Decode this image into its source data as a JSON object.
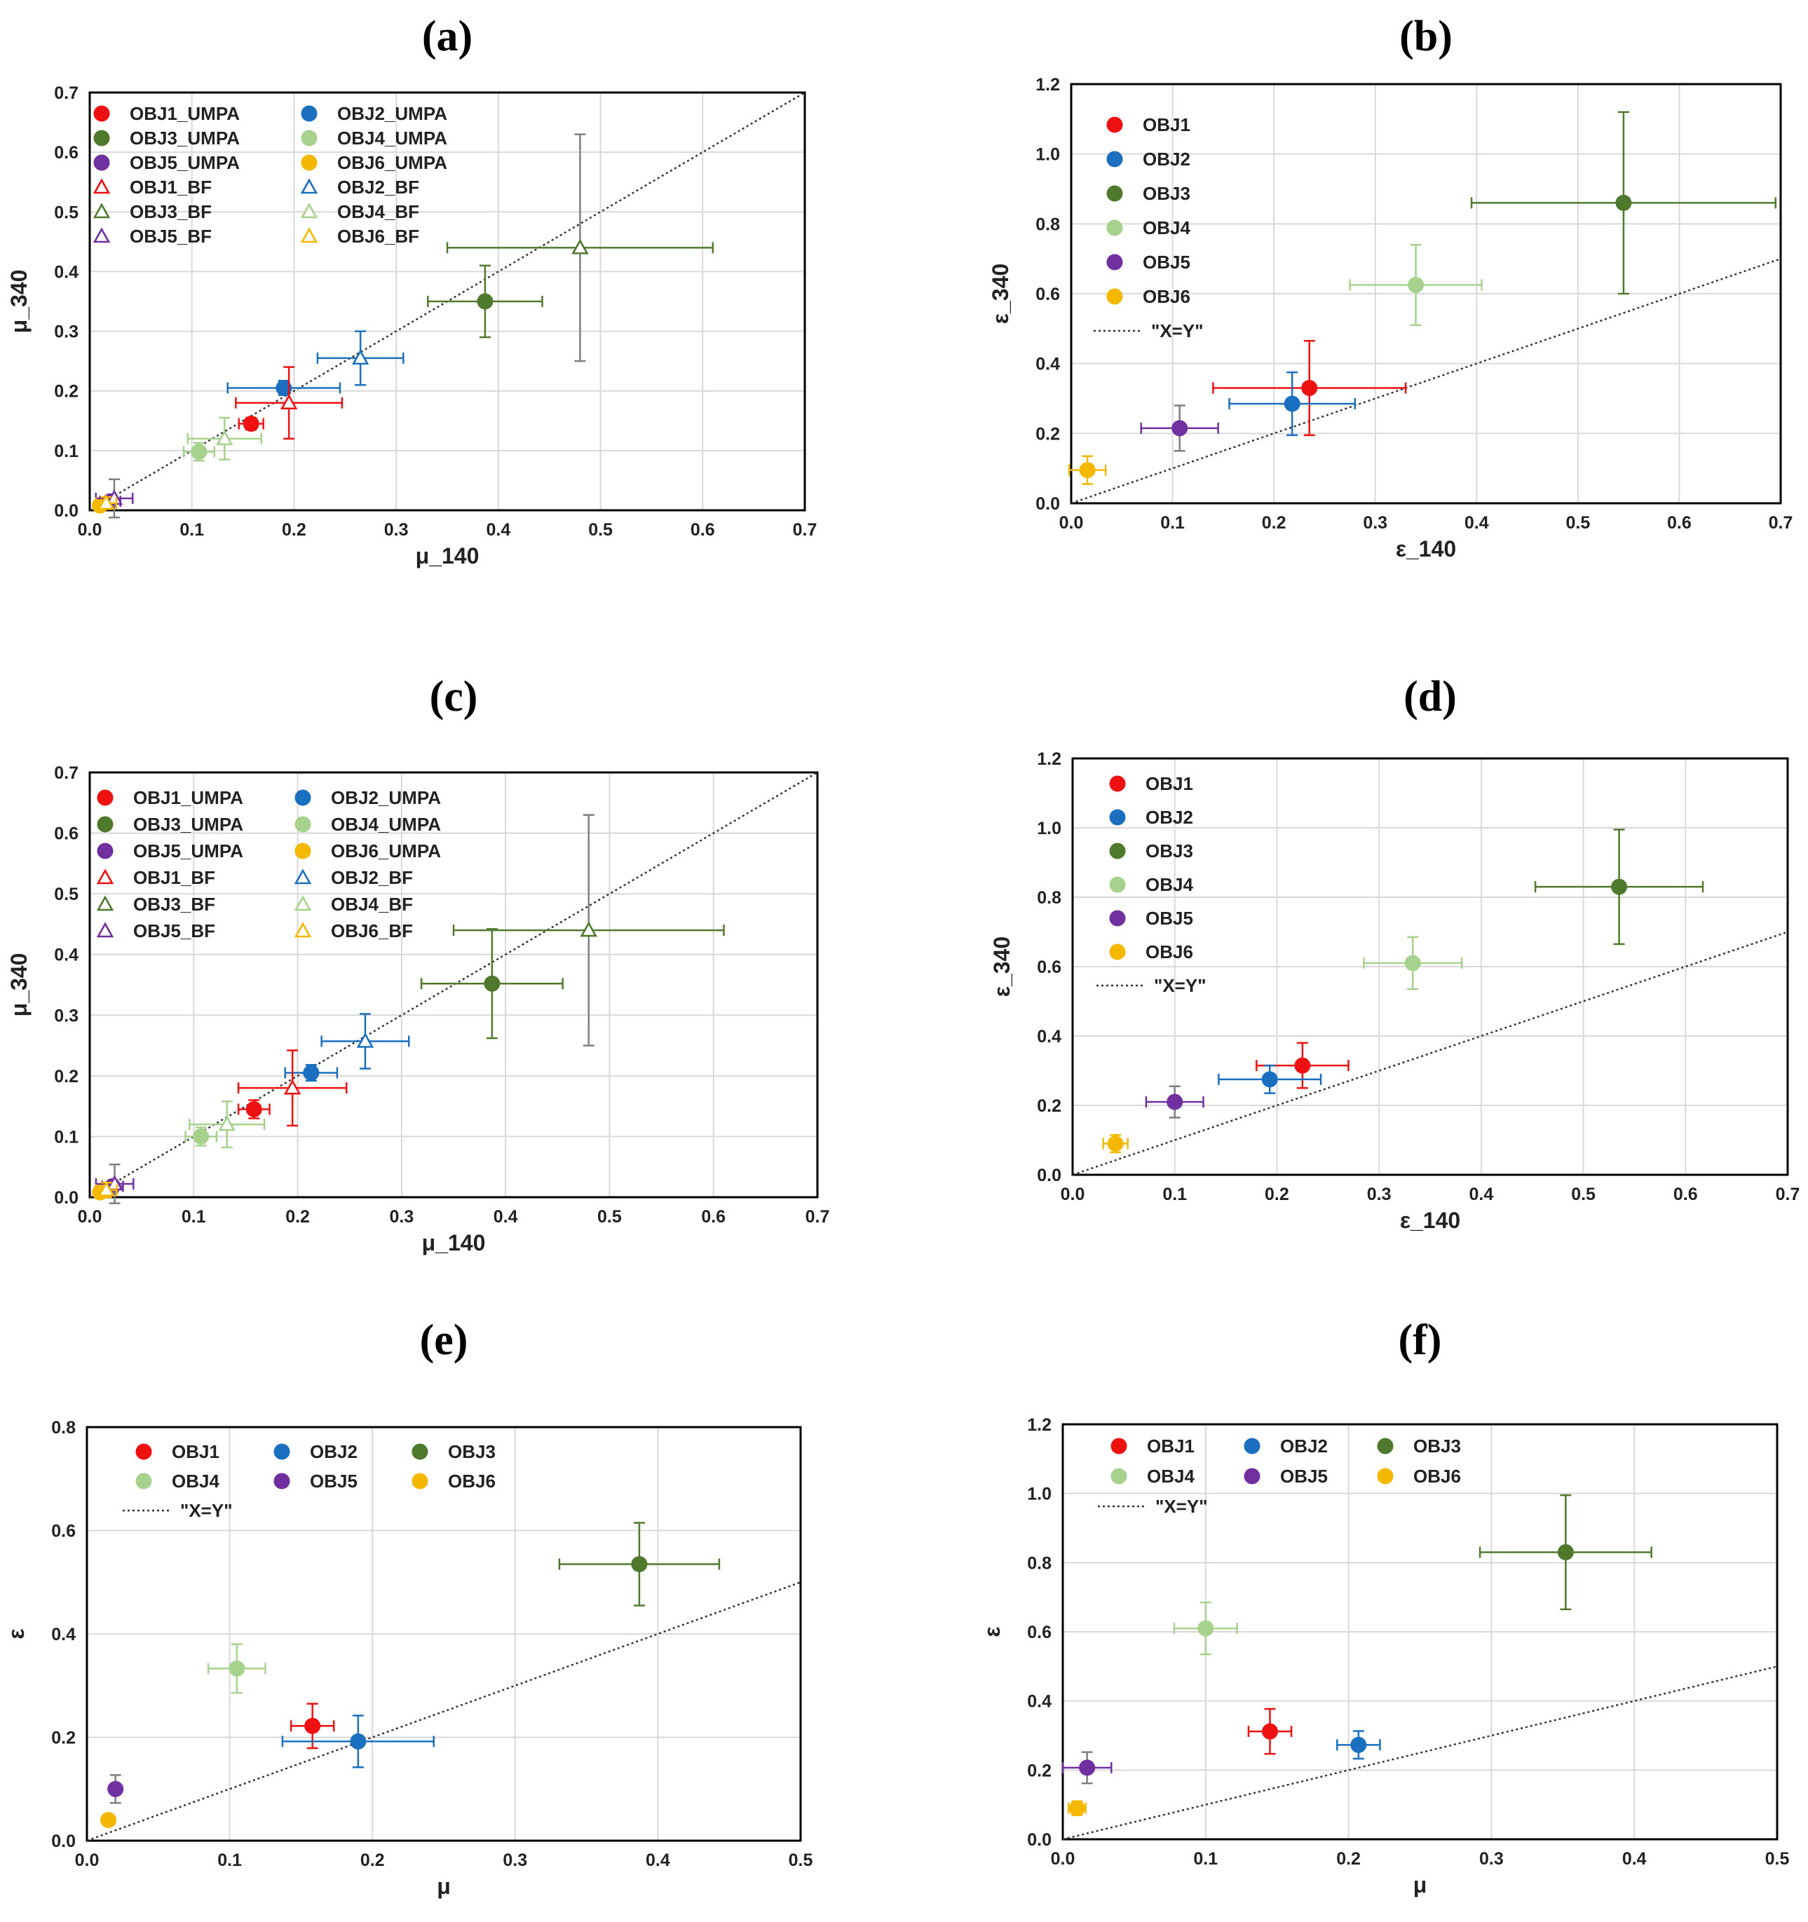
{
  "colors": {
    "OBJ1": "#ee1111",
    "OBJ2": "#1a6fbf",
    "OBJ3": "#4f7a2e",
    "OBJ4": "#a6d28d",
    "OBJ5": "#7030a0",
    "OBJ6": "#f5b800",
    "neutral_error": "#7f7f7f"
  },
  "chart_data": [
    {
      "id": "a",
      "label": "(a)",
      "type": "scatter",
      "xlabel": "μ_140",
      "ylabel": "μ_340",
      "xlim": [
        0,
        0.7
      ],
      "ylim": [
        0,
        0.7
      ],
      "xticks": [
        "0.0",
        "0.1",
        "0.2",
        "0.3",
        "0.4",
        "0.5",
        "0.6",
        "0.7"
      ],
      "yticks": [
        "0.0",
        "0.1",
        "0.2",
        "0.3",
        "0.4",
        "0.5",
        "0.6",
        "0.7"
      ],
      "legend_position": "top-left",
      "legend_columns": 2,
      "legend": [
        {
          "label": "OBJ1_UMPA",
          "obj": "OBJ1",
          "marker": "circle"
        },
        {
          "label": "OBJ2_UMPA",
          "obj": "OBJ2",
          "marker": "circle"
        },
        {
          "label": "OBJ3_UMPA",
          "obj": "OBJ3",
          "marker": "circle"
        },
        {
          "label": "OBJ4_UMPA",
          "obj": "OBJ4",
          "marker": "circle"
        },
        {
          "label": "OBJ5_UMPA",
          "obj": "OBJ5",
          "marker": "circle"
        },
        {
          "label": "OBJ6_UMPA",
          "obj": "OBJ6",
          "marker": "circle"
        },
        {
          "label": "OBJ1_BF",
          "obj": "OBJ1",
          "marker": "triangle"
        },
        {
          "label": "OBJ2_BF",
          "obj": "OBJ2",
          "marker": "triangle"
        },
        {
          "label": "OBJ3_BF",
          "obj": "OBJ3",
          "marker": "triangle"
        },
        {
          "label": "OBJ4_BF",
          "obj": "OBJ4",
          "marker": "triangle"
        },
        {
          "label": "OBJ5_BF",
          "obj": "OBJ5",
          "marker": "triangle"
        },
        {
          "label": "OBJ6_BF",
          "obj": "OBJ6",
          "marker": "triangle"
        }
      ],
      "points": [
        {
          "series": "OBJ1_UMPA",
          "obj": "OBJ1",
          "marker": "circle",
          "x": 0.158,
          "y": 0.145,
          "xerr": 0.012,
          "yerr": 0.01
        },
        {
          "series": "OBJ2_UMPA",
          "obj": "OBJ2",
          "marker": "circle",
          "x": 0.19,
          "y": 0.205,
          "xerr": 0.055,
          "yerr": 0.012
        },
        {
          "series": "OBJ3_UMPA",
          "obj": "OBJ3",
          "marker": "circle",
          "x": 0.387,
          "y": 0.35,
          "xerr": 0.056,
          "yerr": 0.06
        },
        {
          "series": "OBJ4_UMPA",
          "obj": "OBJ4",
          "marker": "circle",
          "x": 0.107,
          "y": 0.098,
          "xerr": 0.015,
          "yerr": 0.015
        },
        {
          "series": "OBJ5_UMPA",
          "obj": "OBJ5",
          "marker": "circle",
          "x": 0.02,
          "y": 0.015,
          "xerr": 0.01,
          "yerr": 0.008
        },
        {
          "series": "OBJ6_UMPA",
          "obj": "OBJ6",
          "marker": "circle",
          "x": 0.01,
          "y": 0.008,
          "xerr": 0.005,
          "yerr": 0.005
        },
        {
          "series": "OBJ1_BF",
          "obj": "OBJ1",
          "marker": "triangle",
          "x": 0.195,
          "y": 0.18,
          "xerr": 0.052,
          "yerr": 0.06
        },
        {
          "series": "OBJ2_BF",
          "obj": "OBJ2",
          "marker": "triangle",
          "x": 0.265,
          "y": 0.255,
          "xerr": 0.042,
          "yerr": 0.045
        },
        {
          "series": "OBJ3_BF",
          "obj": "OBJ3",
          "marker": "triangle",
          "x": 0.48,
          "y": 0.44,
          "xerr": 0.13,
          "yerr": 0.19
        },
        {
          "series": "OBJ4_BF",
          "obj": "OBJ4",
          "marker": "triangle",
          "x": 0.132,
          "y": 0.12,
          "xerr": 0.036,
          "yerr": 0.035
        },
        {
          "series": "OBJ5_BF",
          "obj": "OBJ5",
          "marker": "triangle",
          "x": 0.024,
          "y": 0.02,
          "xerr": 0.018,
          "yerr": 0.032
        },
        {
          "series": "OBJ6_BF",
          "obj": "OBJ6",
          "marker": "triangle",
          "x": 0.016,
          "y": 0.012,
          "xerr": 0.01,
          "yerr": 0.01
        }
      ]
    },
    {
      "id": "b",
      "label": "(b)",
      "type": "scatter",
      "xlabel": "ε_140",
      "ylabel": "ε_340",
      "xlim": [
        0,
        0.7
      ],
      "ylim": [
        0,
        1.2
      ],
      "xticks": [
        "0.0",
        "0.1",
        "0.2",
        "0.3",
        "0.4",
        "0.5",
        "0.6",
        "0.7"
      ],
      "yticks": [
        "0.0",
        "0.2",
        "0.4",
        "0.6",
        "0.8",
        "1.0",
        "1.2"
      ],
      "legend_position": "top-left",
      "legend_columns": 1,
      "legend": [
        {
          "label": "OBJ1",
          "obj": "OBJ1",
          "marker": "circle"
        },
        {
          "label": "OBJ2",
          "obj": "OBJ2",
          "marker": "circle"
        },
        {
          "label": "OBJ3",
          "obj": "OBJ3",
          "marker": "circle"
        },
        {
          "label": "OBJ4",
          "obj": "OBJ4",
          "marker": "circle"
        },
        {
          "label": "OBJ5",
          "obj": "OBJ5",
          "marker": "circle"
        },
        {
          "label": "OBJ6",
          "obj": "OBJ6",
          "marker": "circle"
        },
        {
          "label": "\"X=Y\"",
          "obj": "",
          "marker": "line"
        }
      ],
      "points": [
        {
          "series": "OBJ1",
          "obj": "OBJ1",
          "marker": "circle",
          "x": 0.235,
          "y": 0.33,
          "xerr": 0.095,
          "yerr": 0.135
        },
        {
          "series": "OBJ2",
          "obj": "OBJ2",
          "marker": "circle",
          "x": 0.218,
          "y": 0.285,
          "xerr": 0.062,
          "yerr": 0.09
        },
        {
          "series": "OBJ3",
          "obj": "OBJ3",
          "marker": "circle",
          "x": 0.545,
          "y": 0.86,
          "xerr": 0.15,
          "yerr": 0.26
        },
        {
          "series": "OBJ4",
          "obj": "OBJ4",
          "marker": "circle",
          "x": 0.34,
          "y": 0.625,
          "xerr": 0.065,
          "yerr": 0.115
        },
        {
          "series": "OBJ5",
          "obj": "OBJ5",
          "marker": "circle",
          "x": 0.107,
          "y": 0.215,
          "xerr": 0.038,
          "yerr": 0.065
        },
        {
          "series": "OBJ6",
          "obj": "OBJ6",
          "marker": "circle",
          "x": 0.016,
          "y": 0.095,
          "xerr": 0.018,
          "yerr": 0.04
        }
      ]
    },
    {
      "id": "c",
      "label": "(c)",
      "type": "scatter",
      "xlabel": "μ_140",
      "ylabel": "μ_340",
      "xlim": [
        0,
        0.7
      ],
      "ylim": [
        0,
        0.7
      ],
      "xticks": [
        "0.0",
        "0.1",
        "0.2",
        "0.3",
        "0.4",
        "0.5",
        "0.6",
        "0.7"
      ],
      "yticks": [
        "0.0",
        "0.1",
        "0.2",
        "0.3",
        "0.4",
        "0.5",
        "0.6",
        "0.7"
      ],
      "legend_position": "top-left",
      "legend_columns": 2,
      "legend": [
        {
          "label": "OBJ1_UMPA",
          "obj": "OBJ1",
          "marker": "circle"
        },
        {
          "label": "OBJ2_UMPA",
          "obj": "OBJ2",
          "marker": "circle"
        },
        {
          "label": "OBJ3_UMPA",
          "obj": "OBJ3",
          "marker": "circle"
        },
        {
          "label": "OBJ4_UMPA",
          "obj": "OBJ4",
          "marker": "circle"
        },
        {
          "label": "OBJ5_UMPA",
          "obj": "OBJ5",
          "marker": "circle"
        },
        {
          "label": "OBJ6_UMPA",
          "obj": "OBJ6",
          "marker": "circle"
        },
        {
          "label": "OBJ1_BF",
          "obj": "OBJ1",
          "marker": "triangle"
        },
        {
          "label": "OBJ2_BF",
          "obj": "OBJ2",
          "marker": "triangle"
        },
        {
          "label": "OBJ3_BF",
          "obj": "OBJ3",
          "marker": "triangle"
        },
        {
          "label": "OBJ4_BF",
          "obj": "OBJ4",
          "marker": "triangle"
        },
        {
          "label": "OBJ5_BF",
          "obj": "OBJ5",
          "marker": "triangle"
        },
        {
          "label": "OBJ6_BF",
          "obj": "OBJ6",
          "marker": "triangle"
        }
      ],
      "points": [
        {
          "series": "OBJ1_UMPA",
          "obj": "OBJ1",
          "marker": "circle",
          "x": 0.158,
          "y": 0.145,
          "xerr": 0.015,
          "yerr": 0.015
        },
        {
          "series": "OBJ2_UMPA",
          "obj": "OBJ2",
          "marker": "circle",
          "x": 0.213,
          "y": 0.205,
          "xerr": 0.025,
          "yerr": 0.013
        },
        {
          "series": "OBJ3_UMPA",
          "obj": "OBJ3",
          "marker": "circle",
          "x": 0.387,
          "y": 0.352,
          "xerr": 0.068,
          "yerr": 0.09
        },
        {
          "series": "OBJ4_UMPA",
          "obj": "OBJ4",
          "marker": "circle",
          "x": 0.107,
          "y": 0.1,
          "xerr": 0.015,
          "yerr": 0.015
        },
        {
          "series": "OBJ5_UMPA",
          "obj": "OBJ5",
          "marker": "circle",
          "x": 0.022,
          "y": 0.018,
          "xerr": 0.01,
          "yerr": 0.01
        },
        {
          "series": "OBJ6_UMPA",
          "obj": "OBJ6",
          "marker": "circle",
          "x": 0.01,
          "y": 0.008,
          "xerr": 0.005,
          "yerr": 0.005
        },
        {
          "series": "OBJ1_BF",
          "obj": "OBJ1",
          "marker": "triangle",
          "x": 0.195,
          "y": 0.18,
          "xerr": 0.052,
          "yerr": 0.062
        },
        {
          "series": "OBJ2_BF",
          "obj": "OBJ2",
          "marker": "triangle",
          "x": 0.265,
          "y": 0.257,
          "xerr": 0.042,
          "yerr": 0.045
        },
        {
          "series": "OBJ3_BF",
          "obj": "OBJ3",
          "marker": "triangle",
          "x": 0.48,
          "y": 0.44,
          "xerr": 0.13,
          "yerr": 0.19
        },
        {
          "series": "OBJ4_BF",
          "obj": "OBJ4",
          "marker": "triangle",
          "x": 0.132,
          "y": 0.12,
          "xerr": 0.036,
          "yerr": 0.038
        },
        {
          "series": "OBJ5_BF",
          "obj": "OBJ5",
          "marker": "triangle",
          "x": 0.024,
          "y": 0.022,
          "xerr": 0.018,
          "yerr": 0.032
        },
        {
          "series": "OBJ6_BF",
          "obj": "OBJ6",
          "marker": "triangle",
          "x": 0.016,
          "y": 0.012,
          "xerr": 0.01,
          "yerr": 0.012
        }
      ]
    },
    {
      "id": "d",
      "label": "(d)",
      "type": "scatter",
      "xlabel": "ε_140",
      "ylabel": "ε_340",
      "xlim": [
        0,
        0.7
      ],
      "ylim": [
        0,
        1.2
      ],
      "xticks": [
        "0.0",
        "0.1",
        "0.2",
        "0.3",
        "0.4",
        "0.5",
        "0.6",
        "0.7"
      ],
      "yticks": [
        "0.0",
        "0.2",
        "0.4",
        "0.6",
        "0.8",
        "1.0",
        "1.2"
      ],
      "legend_position": "top-left",
      "legend_columns": 1,
      "legend": [
        {
          "label": "OBJ1",
          "obj": "OBJ1",
          "marker": "circle"
        },
        {
          "label": "OBJ2",
          "obj": "OBJ2",
          "marker": "circle"
        },
        {
          "label": "OBJ3",
          "obj": "OBJ3",
          "marker": "circle"
        },
        {
          "label": "OBJ4",
          "obj": "OBJ4",
          "marker": "circle"
        },
        {
          "label": "OBJ5",
          "obj": "OBJ5",
          "marker": "circle"
        },
        {
          "label": "OBJ6",
          "obj": "OBJ6",
          "marker": "circle"
        },
        {
          "label": "\"X=Y\"",
          "obj": "",
          "marker": "line"
        }
      ],
      "points": [
        {
          "series": "OBJ1",
          "obj": "OBJ1",
          "marker": "circle",
          "x": 0.225,
          "y": 0.315,
          "xerr": 0.045,
          "yerr": 0.065
        },
        {
          "series": "OBJ2",
          "obj": "OBJ2",
          "marker": "circle",
          "x": 0.193,
          "y": 0.275,
          "xerr": 0.05,
          "yerr": 0.04
        },
        {
          "series": "OBJ3",
          "obj": "OBJ3",
          "marker": "circle",
          "x": 0.535,
          "y": 0.83,
          "xerr": 0.082,
          "yerr": 0.165
        },
        {
          "series": "OBJ4",
          "obj": "OBJ4",
          "marker": "circle",
          "x": 0.333,
          "y": 0.61,
          "xerr": 0.048,
          "yerr": 0.075
        },
        {
          "series": "OBJ5",
          "obj": "OBJ5",
          "marker": "circle",
          "x": 0.1,
          "y": 0.21,
          "xerr": 0.028,
          "yerr": 0.045
        },
        {
          "series": "OBJ6",
          "obj": "OBJ6",
          "marker": "circle",
          "x": 0.042,
          "y": 0.09,
          "xerr": 0.012,
          "yerr": 0.025
        }
      ]
    },
    {
      "id": "e",
      "label": "(e)",
      "type": "scatter",
      "xlabel": "μ",
      "ylabel": "ε",
      "xlim": [
        0,
        0.5
      ],
      "ylim": [
        0,
        0.8
      ],
      "xticks": [
        "0.0",
        "0.1",
        "0.2",
        "0.3",
        "0.4",
        "0.5"
      ],
      "yticks": [
        "0.0",
        "0.2",
        "0.4",
        "0.6",
        "0.8"
      ],
      "legend_position": "top-left",
      "legend_columns": 3,
      "legend": [
        {
          "label": "OBJ1",
          "obj": "OBJ1",
          "marker": "circle"
        },
        {
          "label": "OBJ2",
          "obj": "OBJ2",
          "marker": "circle"
        },
        {
          "label": "OBJ3",
          "obj": "OBJ3",
          "marker": "circle"
        },
        {
          "label": "OBJ4",
          "obj": "OBJ4",
          "marker": "circle"
        },
        {
          "label": "OBJ5",
          "obj": "OBJ5",
          "marker": "circle"
        },
        {
          "label": "OBJ6",
          "obj": "OBJ6",
          "marker": "circle"
        },
        {
          "label": "\"X=Y\"",
          "obj": "",
          "marker": "line"
        }
      ],
      "points": [
        {
          "series": "OBJ1",
          "obj": "OBJ1",
          "marker": "circle",
          "x": 0.158,
          "y": 0.222,
          "xerr": 0.015,
          "yerr": 0.043
        },
        {
          "series": "OBJ2",
          "obj": "OBJ2",
          "marker": "circle",
          "x": 0.19,
          "y": 0.192,
          "xerr": 0.053,
          "yerr": 0.05
        },
        {
          "series": "OBJ3",
          "obj": "OBJ3",
          "marker": "circle",
          "x": 0.387,
          "y": 0.535,
          "xerr": 0.056,
          "yerr": 0.08
        },
        {
          "series": "OBJ4",
          "obj": "OBJ4",
          "marker": "circle",
          "x": 0.105,
          "y": 0.333,
          "xerr": 0.02,
          "yerr": 0.047
        },
        {
          "series": "OBJ5",
          "obj": "OBJ5",
          "marker": "circle",
          "x": 0.02,
          "y": 0.1,
          "xerr": 0.0,
          "yerr": 0.027
        },
        {
          "series": "OBJ6",
          "obj": "OBJ6",
          "marker": "circle",
          "x": 0.015,
          "y": 0.04,
          "xerr": 0.0,
          "yerr": 0.0
        }
      ]
    },
    {
      "id": "f",
      "label": "(f)",
      "type": "scatter",
      "xlabel": "μ",
      "ylabel": "ε",
      "xlim": [
        0,
        0.5
      ],
      "ylim": [
        0,
        1.2
      ],
      "xticks": [
        "0.0",
        "0.1",
        "0.2",
        "0.3",
        "0.4",
        "0.5"
      ],
      "yticks": [
        "0.0",
        "0.2",
        "0.4",
        "0.6",
        "0.8",
        "1.0",
        "1.2"
      ],
      "legend_position": "top-left",
      "legend_columns": 3,
      "legend": [
        {
          "label": "OBJ1",
          "obj": "OBJ1",
          "marker": "circle"
        },
        {
          "label": "OBJ2",
          "obj": "OBJ2",
          "marker": "circle"
        },
        {
          "label": "OBJ3",
          "obj": "OBJ3",
          "marker": "circle"
        },
        {
          "label": "OBJ4",
          "obj": "OBJ4",
          "marker": "circle"
        },
        {
          "label": "OBJ5",
          "obj": "OBJ5",
          "marker": "circle"
        },
        {
          "label": "OBJ6",
          "obj": "OBJ6",
          "marker": "circle"
        },
        {
          "label": "\"X=Y\"",
          "obj": "",
          "marker": "line"
        }
      ],
      "points": [
        {
          "series": "OBJ1",
          "obj": "OBJ1",
          "marker": "circle",
          "x": 0.145,
          "y": 0.312,
          "xerr": 0.015,
          "yerr": 0.065
        },
        {
          "series": "OBJ2",
          "obj": "OBJ2",
          "marker": "circle",
          "x": 0.207,
          "y": 0.273,
          "xerr": 0.015,
          "yerr": 0.04
        },
        {
          "series": "OBJ3",
          "obj": "OBJ3",
          "marker": "circle",
          "x": 0.352,
          "y": 0.83,
          "xerr": 0.06,
          "yerr": 0.165
        },
        {
          "series": "OBJ4",
          "obj": "OBJ4",
          "marker": "circle",
          "x": 0.1,
          "y": 0.61,
          "xerr": 0.022,
          "yerr": 0.075
        },
        {
          "series": "OBJ5",
          "obj": "OBJ5",
          "marker": "circle",
          "x": 0.017,
          "y": 0.207,
          "xerr": 0.017,
          "yerr": 0.045
        },
        {
          "series": "OBJ6",
          "obj": "OBJ6",
          "marker": "circle",
          "x": 0.01,
          "y": 0.09,
          "xerr": 0.006,
          "yerr": 0.02
        }
      ]
    }
  ]
}
